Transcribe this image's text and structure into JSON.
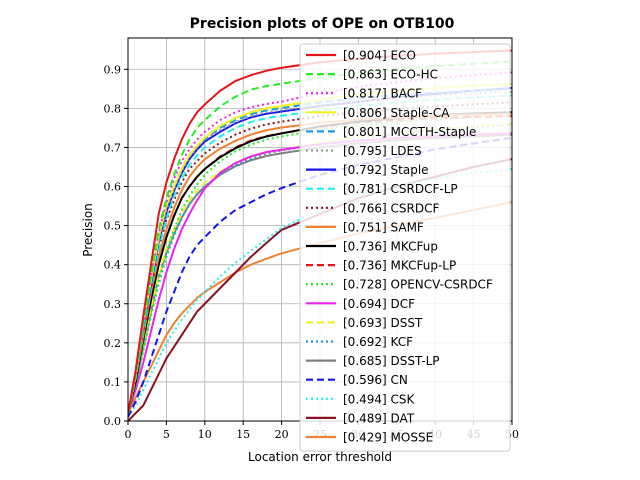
{
  "chart_data": {
    "type": "line",
    "title": "Precision plots of OPE on OTB100",
    "xlabel": "Location error threshold",
    "ylabel": "Precision",
    "xlim": [
      0,
      50
    ],
    "ylim": [
      0,
      0.98
    ],
    "xticks": [
      0,
      5,
      10,
      15,
      20,
      25,
      30,
      35,
      40,
      45,
      50
    ],
    "yticks": [
      0.0,
      0.1,
      0.2,
      0.3,
      0.4,
      0.5,
      0.6,
      0.7,
      0.8,
      0.9
    ],
    "xtick_labels": [
      "0",
      "5",
      "10",
      "15",
      "20",
      "25",
      "30",
      "35",
      "40",
      "45",
      "50"
    ],
    "ytick_labels": [
      "0.0",
      "0.1",
      "0.2",
      "0.3",
      "0.4",
      "0.5",
      "0.6",
      "0.7",
      "0.8",
      "0.9"
    ],
    "grid": true,
    "legend_position": "top-right",
    "x": [
      0,
      1,
      2,
      3,
      4,
      5,
      6,
      7,
      8,
      9,
      10,
      12,
      14,
      16,
      18,
      20,
      25,
      30,
      35,
      40,
      45,
      50
    ],
    "series": [
      {
        "name": "ECO",
        "label": "[0.904] ECO",
        "color": "#e6141a",
        "dash": "solid",
        "values": [
          0.02,
          0.13,
          0.27,
          0.4,
          0.53,
          0.61,
          0.67,
          0.72,
          0.76,
          0.79,
          0.81,
          0.845,
          0.87,
          0.885,
          0.896,
          0.904,
          0.918,
          0.927,
          0.934,
          0.94,
          0.944,
          0.948
        ]
      },
      {
        "name": "ECO-HC",
        "label": "[0.863] ECO-HC",
        "color": "#22ee22",
        "dash": "dashed",
        "values": [
          0.02,
          0.12,
          0.25,
          0.37,
          0.49,
          0.57,
          0.63,
          0.68,
          0.72,
          0.75,
          0.77,
          0.805,
          0.83,
          0.848,
          0.857,
          0.863,
          0.878,
          0.89,
          0.9,
          0.908,
          0.914,
          0.92
        ]
      },
      {
        "name": "BACF",
        "label": "[0.817] BACF",
        "color": "#ee22ee",
        "dash": "dotted",
        "values": [
          0.02,
          0.12,
          0.25,
          0.37,
          0.48,
          0.56,
          0.62,
          0.665,
          0.695,
          0.72,
          0.74,
          0.77,
          0.79,
          0.803,
          0.811,
          0.817,
          0.84,
          0.855,
          0.867,
          0.877,
          0.885,
          0.892
        ]
      },
      {
        "name": "Staple-CA",
        "label": "[0.806] Staple-CA",
        "color": "#f2f222",
        "dash": "solid",
        "values": [
          0.02,
          0.12,
          0.25,
          0.36,
          0.47,
          0.55,
          0.6,
          0.645,
          0.68,
          0.705,
          0.725,
          0.755,
          0.775,
          0.79,
          0.8,
          0.806,
          0.822,
          0.835,
          0.845,
          0.852,
          0.858,
          0.862
        ]
      },
      {
        "name": "MCCTH-Staple",
        "label": "[0.801] MCCTH-Staple",
        "color": "#1e9ae8",
        "dash": "dashed",
        "values": [
          0.02,
          0.12,
          0.24,
          0.36,
          0.47,
          0.55,
          0.6,
          0.645,
          0.68,
          0.705,
          0.722,
          0.75,
          0.77,
          0.785,
          0.795,
          0.801,
          0.815,
          0.826,
          0.834,
          0.84,
          0.845,
          0.85
        ]
      },
      {
        "name": "LDES",
        "label": "[0.795] LDES",
        "color": "#999999",
        "dash": "dotted",
        "values": [
          0.02,
          0.12,
          0.24,
          0.36,
          0.46,
          0.54,
          0.595,
          0.64,
          0.675,
          0.7,
          0.72,
          0.745,
          0.765,
          0.78,
          0.79,
          0.795,
          0.808,
          0.818,
          0.827,
          0.833,
          0.838,
          0.842
        ]
      },
      {
        "name": "Staple",
        "label": "[0.792] Staple",
        "color": "#1515ee",
        "dash": "solid",
        "values": [
          0.02,
          0.12,
          0.24,
          0.35,
          0.46,
          0.535,
          0.59,
          0.635,
          0.67,
          0.695,
          0.715,
          0.74,
          0.762,
          0.777,
          0.786,
          0.792,
          0.806,
          0.817,
          0.828,
          0.837,
          0.845,
          0.852
        ]
      },
      {
        "name": "CSRDCF-LP",
        "label": "[0.781] CSRDCF-LP",
        "color": "#22eeee",
        "dash": "dashed",
        "values": [
          0.02,
          0.11,
          0.23,
          0.34,
          0.44,
          0.52,
          0.575,
          0.62,
          0.655,
          0.68,
          0.7,
          0.728,
          0.75,
          0.765,
          0.775,
          0.781,
          0.795,
          0.806,
          0.815,
          0.822,
          0.828,
          0.833
        ]
      },
      {
        "name": "CSRDCF",
        "label": "[0.766] CSRDCF",
        "color": "#881122",
        "dash": "dotted",
        "values": [
          0.02,
          0.11,
          0.23,
          0.34,
          0.44,
          0.515,
          0.565,
          0.61,
          0.645,
          0.665,
          0.685,
          0.712,
          0.733,
          0.748,
          0.759,
          0.766,
          0.78,
          0.79,
          0.798,
          0.805,
          0.81,
          0.815
        ]
      },
      {
        "name": "SAMF",
        "label": "[0.751] SAMF",
        "color": "#f08030",
        "dash": "solid",
        "values": [
          0.02,
          0.11,
          0.22,
          0.33,
          0.42,
          0.49,
          0.545,
          0.59,
          0.625,
          0.65,
          0.67,
          0.697,
          0.717,
          0.733,
          0.744,
          0.751,
          0.763,
          0.771,
          0.777,
          0.781,
          0.784,
          0.786
        ]
      },
      {
        "name": "MKCFup",
        "label": "[0.736] MKCFup",
        "color": "#000000",
        "dash": "solid",
        "values": [
          0.02,
          0.1,
          0.21,
          0.31,
          0.4,
          0.47,
          0.525,
          0.57,
          0.6,
          0.625,
          0.645,
          0.675,
          0.698,
          0.716,
          0.728,
          0.736,
          0.754,
          0.766,
          0.775,
          0.782,
          0.787,
          0.79
        ]
      },
      {
        "name": "MKCFup-LP",
        "label": "[0.736] MKCFup-LP",
        "color": "#e6141a",
        "dash": "dashed",
        "values": [
          0.02,
          0.1,
          0.21,
          0.31,
          0.4,
          0.47,
          0.525,
          0.57,
          0.6,
          0.625,
          0.645,
          0.677,
          0.7,
          0.718,
          0.729,
          0.736,
          0.752,
          0.763,
          0.77,
          0.775,
          0.778,
          0.78
        ]
      },
      {
        "name": "OPENCV-CSRDCF",
        "label": "[0.728] OPENCV-CSRDCF",
        "color": "#22ee22",
        "dash": "dotted",
        "values": [
          0.02,
          0.09,
          0.18,
          0.27,
          0.36,
          0.43,
          0.49,
          0.54,
          0.575,
          0.605,
          0.63,
          0.665,
          0.69,
          0.707,
          0.72,
          0.728,
          0.745,
          0.757,
          0.765,
          0.772,
          0.777,
          0.78
        ]
      },
      {
        "name": "DCF",
        "label": "[0.694] DCF",
        "color": "#ee22ee",
        "dash": "solid",
        "values": [
          0.02,
          0.08,
          0.15,
          0.23,
          0.31,
          0.38,
          0.44,
          0.49,
          0.53,
          0.565,
          0.595,
          0.635,
          0.66,
          0.677,
          0.688,
          0.694,
          0.708,
          0.717,
          0.724,
          0.729,
          0.733,
          0.736
        ]
      },
      {
        "name": "DSST",
        "label": "[0.693] DSST",
        "color": "#f2f222",
        "dash": "dashed",
        "values": [
          0.02,
          0.1,
          0.2,
          0.29,
          0.37,
          0.44,
          0.49,
          0.53,
          0.565,
          0.59,
          0.61,
          0.638,
          0.66,
          0.676,
          0.687,
          0.693,
          0.712,
          0.726,
          0.738,
          0.747,
          0.754,
          0.76
        ]
      },
      {
        "name": "KCF",
        "label": "[0.692] KCF",
        "color": "#1e9ae8",
        "dash": "dotted",
        "values": [
          0.02,
          0.09,
          0.18,
          0.27,
          0.35,
          0.42,
          0.475,
          0.52,
          0.555,
          0.58,
          0.6,
          0.632,
          0.655,
          0.672,
          0.684,
          0.692,
          0.71,
          0.724,
          0.735,
          0.745,
          0.752,
          0.758
        ]
      },
      {
        "name": "DSST-LP",
        "label": "[0.685] DSST-LP",
        "color": "#808080",
        "dash": "solid",
        "values": [
          0.02,
          0.09,
          0.19,
          0.28,
          0.37,
          0.43,
          0.48,
          0.52,
          0.555,
          0.58,
          0.6,
          0.63,
          0.652,
          0.667,
          0.678,
          0.685,
          0.7,
          0.71,
          0.718,
          0.724,
          0.728,
          0.732
        ]
      },
      {
        "name": "CN",
        "label": "[0.596] CN",
        "color": "#1515ee",
        "dash": "dashed",
        "values": [
          0.01,
          0.05,
          0.1,
          0.16,
          0.22,
          0.28,
          0.33,
          0.38,
          0.42,
          0.45,
          0.47,
          0.51,
          0.54,
          0.56,
          0.58,
          0.596,
          0.63,
          0.655,
          0.675,
          0.695,
          0.71,
          0.725
        ]
      },
      {
        "name": "CSK",
        "label": "[0.494] CSK",
        "color": "#22eeee",
        "dash": "dotted",
        "values": [
          0.01,
          0.04,
          0.08,
          0.12,
          0.16,
          0.2,
          0.23,
          0.26,
          0.285,
          0.31,
          0.33,
          0.37,
          0.405,
          0.435,
          0.465,
          0.494,
          0.54,
          0.575,
          0.6,
          0.62,
          0.635,
          0.645
        ]
      },
      {
        "name": "DAT",
        "label": "[0.489] DAT",
        "color": "#881122",
        "dash": "solid",
        "values": [
          0.0,
          0.02,
          0.04,
          0.08,
          0.12,
          0.16,
          0.19,
          0.22,
          0.25,
          0.28,
          0.3,
          0.34,
          0.38,
          0.42,
          0.455,
          0.489,
          0.53,
          0.57,
          0.6,
          0.625,
          0.65,
          0.67
        ]
      },
      {
        "name": "MOSSE",
        "label": "[0.429] MOSSE",
        "color": "#f08030",
        "dash": "solid",
        "values": [
          0.02,
          0.06,
          0.1,
          0.14,
          0.18,
          0.22,
          0.25,
          0.275,
          0.295,
          0.315,
          0.33,
          0.355,
          0.38,
          0.4,
          0.415,
          0.429,
          0.455,
          0.48,
          0.5,
          0.52,
          0.54,
          0.56
        ]
      }
    ]
  }
}
